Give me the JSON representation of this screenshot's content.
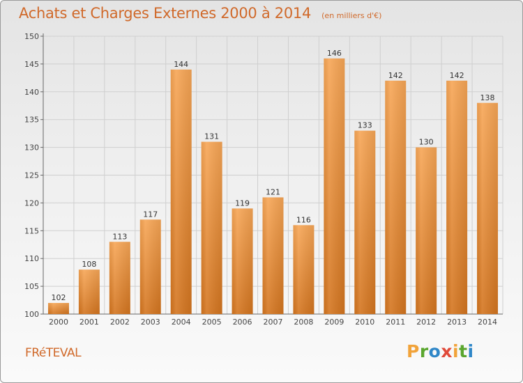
{
  "header": {
    "title": "Achats et Charges Externes 2000 à 2014",
    "subtitle": "(en milliers d'€)"
  },
  "footer": {
    "commune": "FRéTEVAL",
    "brand": "Proxiti"
  },
  "colors": {
    "bar_top": "#f7a656",
    "bar_bottom": "#d4751f",
    "accent": "#d0692a",
    "grid": "#cfcfcf"
  },
  "chart_data": {
    "type": "bar",
    "title": "Achats et Charges Externes 2000 à 2014",
    "subtitle": "(en milliers d'€)",
    "xlabel": "",
    "ylabel": "",
    "categories": [
      "2000",
      "2001",
      "2002",
      "2003",
      "2004",
      "2005",
      "2006",
      "2007",
      "2008",
      "2009",
      "2010",
      "2011",
      "2012",
      "2013",
      "2014"
    ],
    "values": [
      102,
      108,
      113,
      117,
      144,
      131,
      119,
      121,
      116,
      146,
      133,
      142,
      130,
      142,
      138
    ],
    "ylim": [
      100,
      150
    ],
    "yticks": [
      100,
      105,
      110,
      115,
      120,
      125,
      130,
      135,
      140,
      145,
      150
    ],
    "grid": true,
    "data_labels": true
  }
}
